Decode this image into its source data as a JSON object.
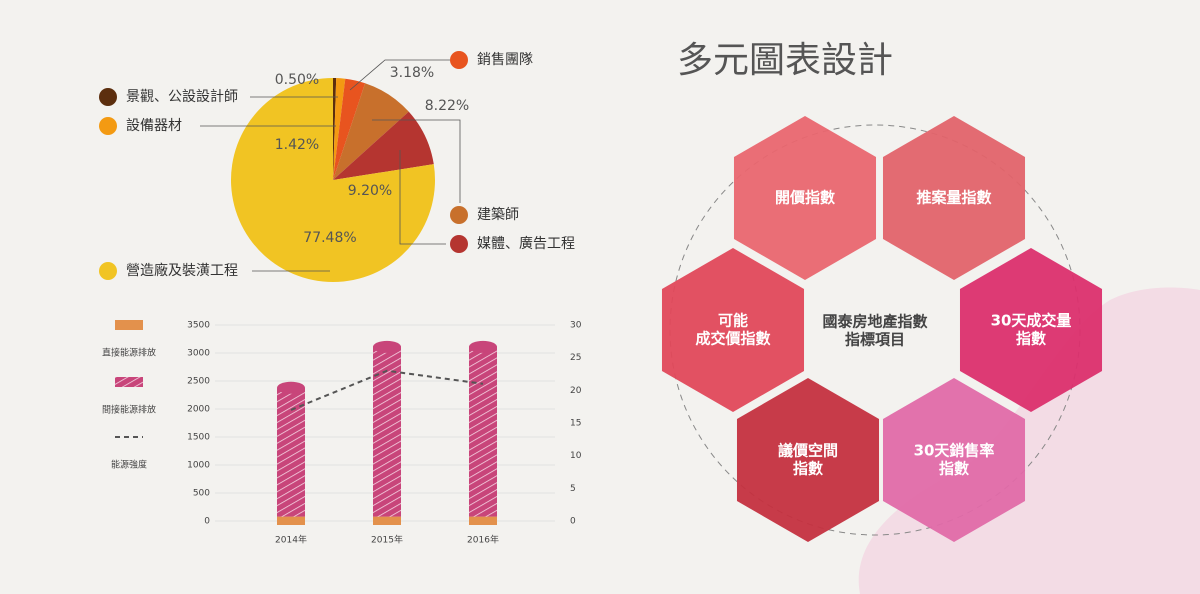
{
  "title": "多元圖表設計",
  "chart_data": [
    {
      "type": "pie",
      "categories": [
        "景觀、公設設計師",
        "設備器材",
        "銷售團隊",
        "建築師",
        "媒體、廣告工程",
        "營造廠及裝潢工程"
      ],
      "values": [
        0.5,
        1.42,
        3.18,
        8.22,
        9.2,
        77.48
      ],
      "value_labels": [
        "0.50%",
        "1.42%",
        "3.18%",
        "8.22%",
        "9.20%",
        "77.48%"
      ],
      "colors": [
        "#5c2e0e",
        "#f39a12",
        "#e8541f",
        "#c8702c",
        "#b53530",
        "#f1c423"
      ]
    },
    {
      "type": "bar",
      "categories": [
        "2014年",
        "2015年",
        "2016年"
      ],
      "series": [
        {
          "name": "直接能源排放",
          "color": "#e3914c",
          "values": [
            150,
            150,
            150
          ]
        },
        {
          "name": "間接能源排放",
          "color": "#c8457a",
          "values": [
            2300,
            3030,
            3030
          ]
        },
        {
          "name": "能源強度",
          "color": "#555555",
          "axis": "y2",
          "values": [
            17,
            23,
            21
          ]
        }
      ],
      "ylim": [
        0,
        3500
      ],
      "yticks": [
        0,
        500,
        1000,
        1500,
        2000,
        2500,
        3000,
        3500
      ],
      "y2lim": [
        0,
        30
      ],
      "y2ticks": [
        0,
        5,
        10,
        15,
        20,
        25,
        30
      ],
      "grid": true
    }
  ],
  "diagram": {
    "center": [
      "國泰房地產指數",
      "指標項目"
    ],
    "nodes": [
      [
        "開價指數"
      ],
      [
        "推案量指數"
      ],
      [
        "可能",
        "成交價指數"
      ],
      [
        "30天成交量",
        "指數"
      ],
      [
        "議價空間",
        "指數"
      ],
      [
        "30天銷售率",
        "指數"
      ]
    ]
  }
}
